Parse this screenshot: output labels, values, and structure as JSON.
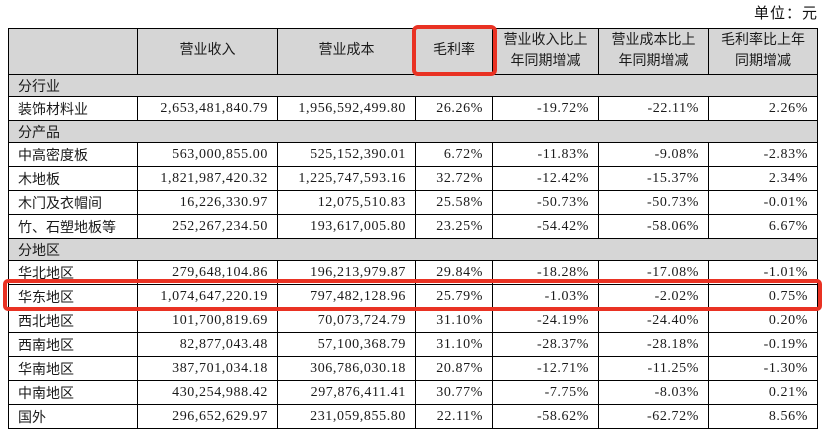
{
  "unit_label": "单位：元",
  "colors": {
    "highlight_red": "#e93223",
    "header_bg": "#d6d6d6",
    "border": "#000000"
  },
  "table": {
    "columns": {
      "corner": "",
      "revenue": "营业收入",
      "cost": "营业成本",
      "margin": "毛利率",
      "revenue_yoy": "营业收入比上年同期增减",
      "cost_yoy": "营业成本比上年同期增减",
      "margin_yoy": "毛利率比上年同期增减"
    },
    "highlights": {
      "boxed_column": "毛利率",
      "boxed_row": "华东地区"
    },
    "sections": [
      {
        "title": "分行业",
        "rows": [
          {
            "label": "装饰材料业",
            "revenue": "2,653,481,840.79",
            "cost": "1,956,592,499.80",
            "margin": "26.26%",
            "revenue_yoy": "-19.72%",
            "cost_yoy": "-22.11%",
            "margin_yoy": "2.26%"
          }
        ]
      },
      {
        "title": "分产品",
        "rows": [
          {
            "label": "中高密度板",
            "revenue": "563,000,855.00",
            "cost": "525,152,390.01",
            "margin": "6.72%",
            "revenue_yoy": "-11.83%",
            "cost_yoy": "-9.08%",
            "margin_yoy": "-2.83%"
          },
          {
            "label": "木地板",
            "revenue": "1,821,987,420.32",
            "cost": "1,225,747,593.16",
            "margin": "32.72%",
            "revenue_yoy": "-12.42%",
            "cost_yoy": "-15.37%",
            "margin_yoy": "2.34%"
          },
          {
            "label": "木门及衣帽间",
            "revenue": "16,226,330.97",
            "cost": "12,075,510.83",
            "margin": "25.58%",
            "revenue_yoy": "-50.73%",
            "cost_yoy": "-50.73%",
            "margin_yoy": "-0.01%"
          },
          {
            "label": "竹、石塑地板等",
            "revenue": "252,267,234.50",
            "cost": "193,617,005.80",
            "margin": "23.25%",
            "revenue_yoy": "-54.42%",
            "cost_yoy": "-58.06%",
            "margin_yoy": "6.67%"
          }
        ]
      },
      {
        "title": "分地区",
        "rows": [
          {
            "label": "华北地区",
            "revenue": "279,648,104.86",
            "cost": "196,213,979.87",
            "margin": "29.84%",
            "revenue_yoy": "-18.28%",
            "cost_yoy": "-17.08%",
            "margin_yoy": "-1.01%"
          },
          {
            "label": "华东地区",
            "revenue": "1,074,647,220.19",
            "cost": "797,482,128.96",
            "margin": "25.79%",
            "revenue_yoy": "-1.03%",
            "cost_yoy": "-2.02%",
            "margin_yoy": "0.75%"
          },
          {
            "label": "西北地区",
            "revenue": "101,700,819.69",
            "cost": "70,073,724.79",
            "margin": "31.10%",
            "revenue_yoy": "-24.19%",
            "cost_yoy": "-24.40%",
            "margin_yoy": "0.20%"
          },
          {
            "label": "西南地区",
            "revenue": "82,877,043.48",
            "cost": "57,100,368.79",
            "margin": "31.10%",
            "revenue_yoy": "-28.37%",
            "cost_yoy": "-28.18%",
            "margin_yoy": "-0.19%"
          },
          {
            "label": "华南地区",
            "revenue": "387,701,034.18",
            "cost": "306,786,030.18",
            "margin": "20.87%",
            "revenue_yoy": "-12.71%",
            "cost_yoy": "-11.25%",
            "margin_yoy": "-1.30%"
          },
          {
            "label": "中南地区",
            "revenue": "430,254,988.42",
            "cost": "297,876,411.41",
            "margin": "30.77%",
            "revenue_yoy": "-7.75%",
            "cost_yoy": "-8.03%",
            "margin_yoy": "0.21%"
          },
          {
            "label": "国外",
            "revenue": "296,652,629.97",
            "cost": "231,059,855.80",
            "margin": "22.11%",
            "revenue_yoy": "-58.62%",
            "cost_yoy": "-62.72%",
            "margin_yoy": "8.56%"
          }
        ]
      }
    ]
  }
}
